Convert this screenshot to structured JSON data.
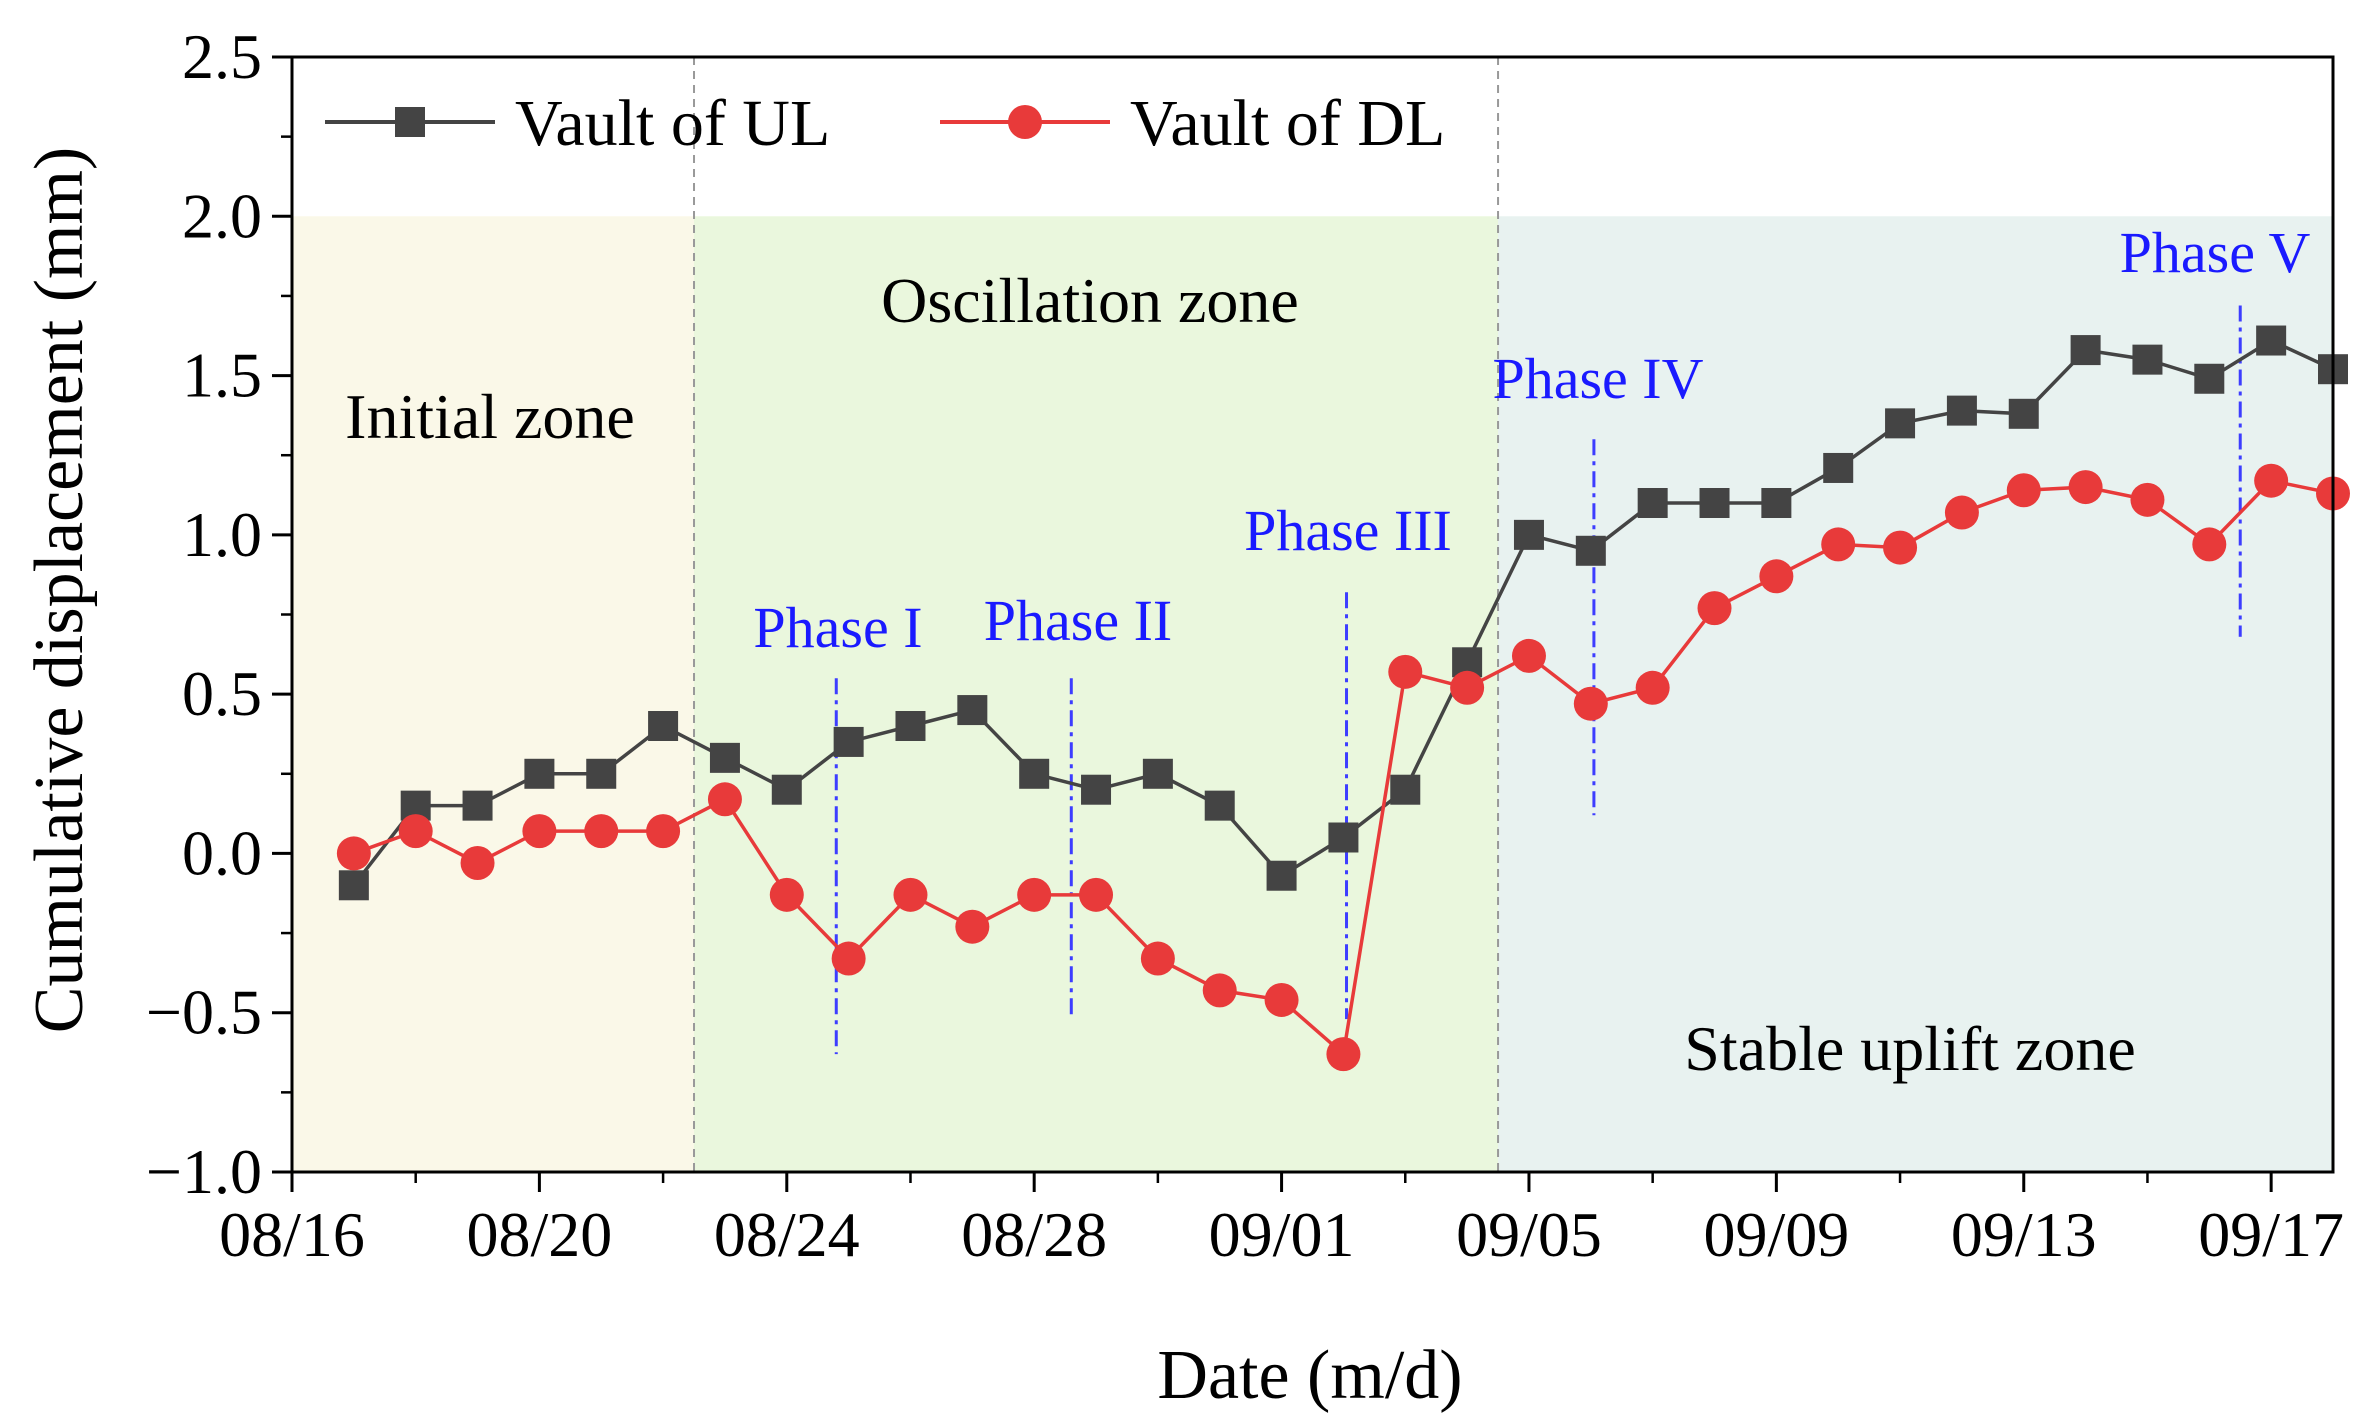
{
  "chart_data": {
    "type": "line",
    "xlabel": "Date (m/d)",
    "ylabel": "Cumulative displacement (mm)",
    "ylim": [
      -1.0,
      2.5
    ],
    "yticks": [
      -1.0,
      -0.5,
      0.0,
      0.5,
      1.0,
      1.5,
      2.0,
      2.5
    ],
    "ytick_labels": [
      "−1.0",
      "−0.5",
      "0.0",
      "0.5",
      "1.0",
      "1.5",
      "2.0",
      "2.5"
    ],
    "xlim": [
      "08/16",
      "09/18"
    ],
    "xticks": [
      "08/16",
      "08/20",
      "08/24",
      "08/28",
      "09/01",
      "09/05",
      "09/09",
      "09/13",
      "09/17"
    ],
    "x": [
      "08/17",
      "08/18",
      "08/19",
      "08/20",
      "08/21",
      "08/22",
      "08/23",
      "08/24",
      "08/25",
      "08/26",
      "08/27",
      "08/28",
      "08/29",
      "08/30",
      "08/31",
      "09/01",
      "09/02",
      "09/03",
      "09/04",
      "09/05",
      "09/06",
      "09/07",
      "09/08",
      "09/09",
      "09/10",
      "09/11",
      "09/12",
      "09/13",
      "09/14",
      "09/15",
      "09/16",
      "09/17",
      "09/18"
    ],
    "series": [
      {
        "name": "Vault of UL",
        "color": "#444444",
        "marker": "square",
        "values": [
          -0.1,
          0.15,
          0.15,
          0.25,
          0.25,
          0.4,
          0.3,
          0.2,
          0.35,
          0.4,
          0.45,
          0.25,
          0.2,
          0.25,
          0.15,
          -0.07,
          0.05,
          0.2,
          0.6,
          1.0,
          0.95,
          1.1,
          1.1,
          1.1,
          1.21,
          1.35,
          1.39,
          1.38,
          1.58,
          1.55,
          1.49,
          1.61,
          1.52
        ]
      },
      {
        "name": "Vault of DL",
        "color": "#e83a3a",
        "marker": "circle",
        "values": [
          0.0,
          0.07,
          -0.03,
          0.07,
          0.07,
          0.07,
          0.17,
          -0.13,
          -0.33,
          -0.13,
          -0.23,
          -0.13,
          -0.13,
          -0.33,
          -0.43,
          -0.46,
          -0.63,
          0.57,
          0.52,
          0.62,
          0.47,
          0.52,
          0.77,
          0.87,
          0.97,
          0.96,
          1.07,
          1.14,
          1.15,
          1.11,
          0.97,
          1.17,
          1.13
        ]
      }
    ],
    "legend": "top-left",
    "grid": false,
    "zones": [
      {
        "label": "Initial zone",
        "from": "08/16",
        "to": "08/22.5",
        "ymax": 2.0,
        "color": "#faf8e8"
      },
      {
        "label": "Oscillation zone",
        "from": "08/22.5",
        "to": "09/04.5",
        "ymax": 2.0,
        "color": "#eaf7dd"
      },
      {
        "label": "Stable uplift zone",
        "from": "09/04.5",
        "to": "09/18",
        "ymax": 2.0,
        "color": "#e8f2f0"
      }
    ],
    "phases": [
      {
        "label": "Phase I",
        "at": "08/24.8",
        "y_from": -0.63,
        "y_to": 0.55
      },
      {
        "label": "Phase II",
        "at": "08/28.6",
        "y_from": -0.52,
        "y_to": 0.55
      },
      {
        "label": "Phase III",
        "at": "09/02.05",
        "y_from": -0.52,
        "y_to": 0.82
      },
      {
        "label": "Phase IV",
        "at": "09/06.05",
        "y_from": 0.12,
        "y_to": 1.3
      },
      {
        "label": "Phase V",
        "at": "09/16.5",
        "y_from": 0.68,
        "y_to": 1.72
      }
    ]
  },
  "legend": {
    "items": [
      "Vault of UL",
      "Vault of DL"
    ]
  },
  "annotations": {
    "initial_zone": "Initial zone",
    "oscillation_zone": "Oscillation zone",
    "stable_zone": "Stable uplift zone",
    "phase_1": "Phase I",
    "phase_2": "Phase II",
    "phase_3": "Phase III",
    "phase_4": "Phase IV",
    "phase_5": "Phase V"
  }
}
